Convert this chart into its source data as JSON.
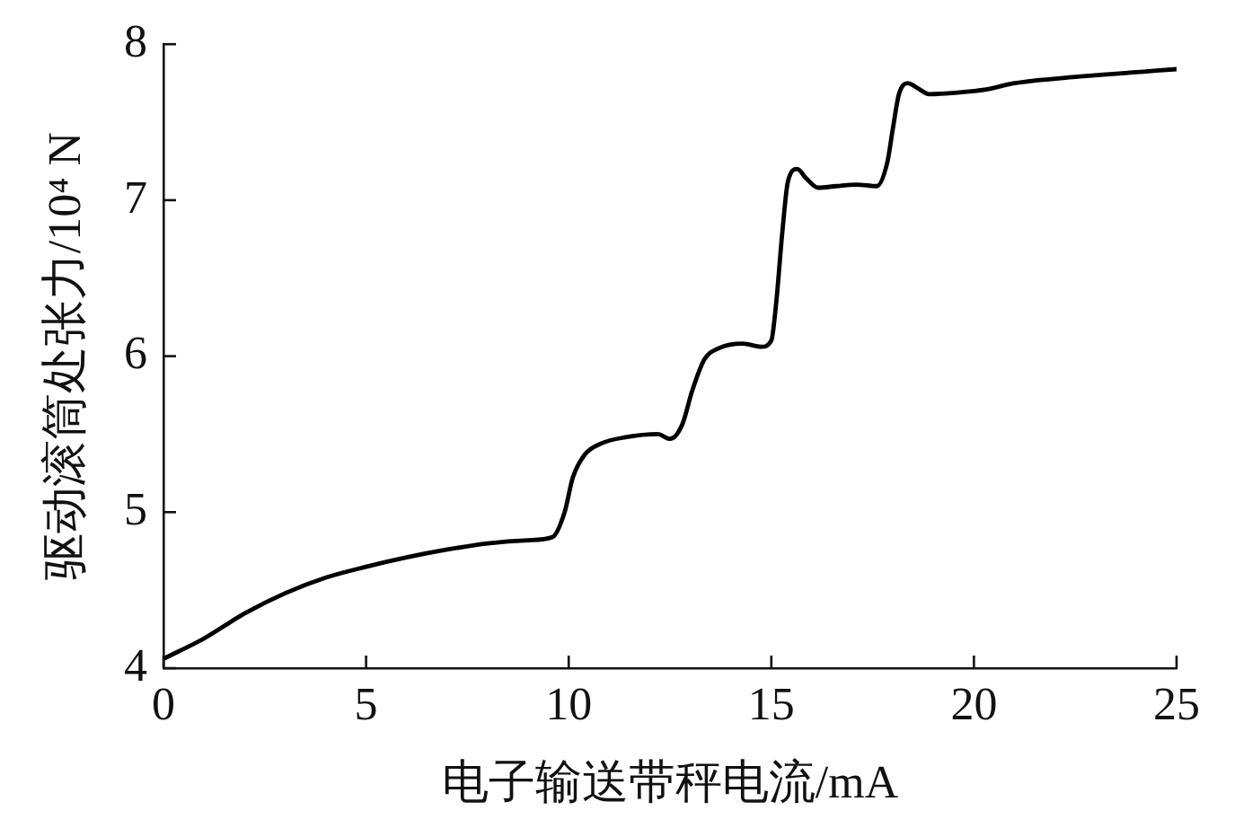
{
  "chart_data": {
    "type": "line",
    "xlabel": "电子输送带秤电流/mA",
    "ylabel": "驱动滚筒处张力/10⁴ N",
    "x": [
      0,
      1,
      2,
      3,
      4,
      5,
      6,
      7,
      8,
      9,
      9.6,
      9.9,
      10.1,
      10.4,
      10.8,
      11.4,
      12.2,
      12.5,
      12.8,
      13.05,
      13.35,
      13.7,
      14.3,
      14.75,
      15.0,
      15.12,
      15.27,
      15.41,
      15.64,
      15.86,
      16.15,
      16.6,
      17.1,
      17.6,
      17.86,
      18.0,
      18.15,
      18.37,
      18.6,
      18.9,
      19.6,
      20.3,
      21.0,
      22.5,
      24.0,
      25.0
    ],
    "values": [
      4.06,
      4.19,
      4.35,
      4.48,
      4.58,
      4.65,
      4.71,
      4.76,
      4.8,
      4.82,
      4.84,
      5.0,
      5.22,
      5.37,
      5.44,
      5.48,
      5.5,
      5.47,
      5.56,
      5.78,
      5.98,
      6.05,
      6.08,
      6.06,
      6.1,
      6.34,
      6.79,
      7.12,
      7.2,
      7.14,
      7.08,
      7.09,
      7.1,
      7.09,
      7.24,
      7.46,
      7.68,
      7.75,
      7.72,
      7.68,
      7.69,
      7.71,
      7.75,
      7.79,
      7.82,
      7.84
    ],
    "color": "#000000",
    "xlim": [
      0,
      25
    ],
    "xticks": [
      0,
      5,
      10,
      15,
      20,
      25
    ],
    "ylim": [
      4,
      8
    ],
    "yticks": [
      4,
      5,
      6,
      7,
      8
    ]
  }
}
